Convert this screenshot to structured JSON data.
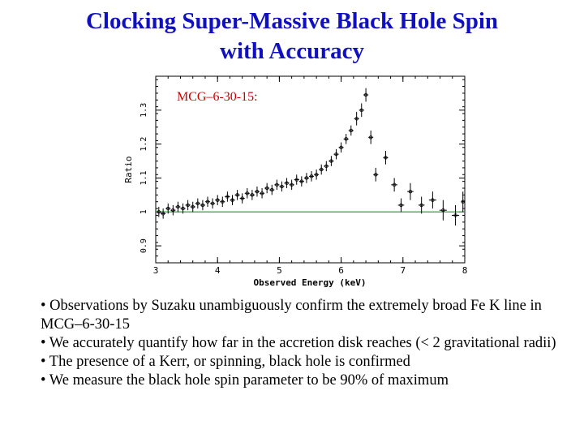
{
  "slide": {
    "title_line1": "Clocking Super-Massive Black Hole Spin",
    "title_line2": "with Accuracy",
    "bullets": [
      "• Observations by Suzaku unambiguously confirm the extremely broad Fe K line in MCG–6-30-15",
      "• We accurately quantify how far in the accretion disk reaches (< 2 gravitational radii)",
      "• The presence of a Kerr, or spinning, black hole is confirmed",
      "• We measure the black hole spin parameter to be 90% of maximum"
    ]
  },
  "colors": {
    "title": "#1010c0",
    "annotation": "#cc0000",
    "reference_line": "#22aa22",
    "data": "#000000"
  },
  "chart_data": {
    "type": "scatter",
    "annotation": "MCG–6-30-15:",
    "xlabel": "Observed Energy (keV)",
    "ylabel": "Ratio",
    "xlim": [
      3,
      8
    ],
    "ylim": [
      0.85,
      1.4
    ],
    "xticks": [
      3,
      4,
      5,
      6,
      7,
      8
    ],
    "xtick_labels": [
      "3",
      "4",
      "5",
      "6",
      "7",
      "8"
    ],
    "yticks": [
      0.9,
      1.0,
      1.1,
      1.2,
      1.3
    ],
    "ytick_labels": [
      "0.9",
      "1",
      "1.1",
      "1.2",
      "1.3"
    ],
    "reference_line": 1.0,
    "grid": false,
    "series": [
      {
        "points": [
          {
            "x": 3.05,
            "y": 1.0,
            "ex": 0.04,
            "ey": 0.015
          },
          {
            "x": 3.12,
            "y": 0.995,
            "ex": 0.04,
            "ey": 0.015
          },
          {
            "x": 3.2,
            "y": 1.01,
            "ex": 0.04,
            "ey": 0.015
          },
          {
            "x": 3.28,
            "y": 1.005,
            "ex": 0.04,
            "ey": 0.015
          },
          {
            "x": 3.36,
            "y": 1.015,
            "ex": 0.04,
            "ey": 0.015
          },
          {
            "x": 3.44,
            "y": 1.01,
            "ex": 0.04,
            "ey": 0.015
          },
          {
            "x": 3.52,
            "y": 1.02,
            "ex": 0.04,
            "ey": 0.015
          },
          {
            "x": 3.6,
            "y": 1.015,
            "ex": 0.04,
            "ey": 0.015
          },
          {
            "x": 3.68,
            "y": 1.025,
            "ex": 0.04,
            "ey": 0.015
          },
          {
            "x": 3.76,
            "y": 1.02,
            "ex": 0.04,
            "ey": 0.015
          },
          {
            "x": 3.84,
            "y": 1.03,
            "ex": 0.04,
            "ey": 0.015
          },
          {
            "x": 3.92,
            "y": 1.025,
            "ex": 0.04,
            "ey": 0.015
          },
          {
            "x": 4.0,
            "y": 1.035,
            "ex": 0.04,
            "ey": 0.015
          },
          {
            "x": 4.08,
            "y": 1.03,
            "ex": 0.04,
            "ey": 0.015
          },
          {
            "x": 4.16,
            "y": 1.045,
            "ex": 0.04,
            "ey": 0.015
          },
          {
            "x": 4.24,
            "y": 1.035,
            "ex": 0.04,
            "ey": 0.015
          },
          {
            "x": 4.32,
            "y": 1.05,
            "ex": 0.04,
            "ey": 0.015
          },
          {
            "x": 4.4,
            "y": 1.04,
            "ex": 0.04,
            "ey": 0.015
          },
          {
            "x": 4.48,
            "y": 1.055,
            "ex": 0.04,
            "ey": 0.015
          },
          {
            "x": 4.56,
            "y": 1.05,
            "ex": 0.04,
            "ey": 0.015
          },
          {
            "x": 4.64,
            "y": 1.06,
            "ex": 0.04,
            "ey": 0.015
          },
          {
            "x": 4.72,
            "y": 1.055,
            "ex": 0.04,
            "ey": 0.015
          },
          {
            "x": 4.8,
            "y": 1.07,
            "ex": 0.04,
            "ey": 0.015
          },
          {
            "x": 4.88,
            "y": 1.065,
            "ex": 0.04,
            "ey": 0.015
          },
          {
            "x": 4.96,
            "y": 1.08,
            "ex": 0.04,
            "ey": 0.015
          },
          {
            "x": 5.04,
            "y": 1.075,
            "ex": 0.04,
            "ey": 0.015
          },
          {
            "x": 5.12,
            "y": 1.085,
            "ex": 0.04,
            "ey": 0.015
          },
          {
            "x": 5.2,
            "y": 1.08,
            "ex": 0.04,
            "ey": 0.015
          },
          {
            "x": 5.28,
            "y": 1.095,
            "ex": 0.04,
            "ey": 0.015
          },
          {
            "x": 5.36,
            "y": 1.09,
            "ex": 0.04,
            "ey": 0.015
          },
          {
            "x": 5.44,
            "y": 1.1,
            "ex": 0.04,
            "ey": 0.015
          },
          {
            "x": 5.52,
            "y": 1.105,
            "ex": 0.04,
            "ey": 0.015
          },
          {
            "x": 5.6,
            "y": 1.11,
            "ex": 0.04,
            "ey": 0.015
          },
          {
            "x": 5.68,
            "y": 1.125,
            "ex": 0.04,
            "ey": 0.015
          },
          {
            "x": 5.76,
            "y": 1.135,
            "ex": 0.04,
            "ey": 0.015
          },
          {
            "x": 5.84,
            "y": 1.15,
            "ex": 0.04,
            "ey": 0.015
          },
          {
            "x": 5.92,
            "y": 1.17,
            "ex": 0.04,
            "ey": 0.015
          },
          {
            "x": 6.0,
            "y": 1.19,
            "ex": 0.04,
            "ey": 0.015
          },
          {
            "x": 6.08,
            "y": 1.215,
            "ex": 0.04,
            "ey": 0.015
          },
          {
            "x": 6.16,
            "y": 1.24,
            "ex": 0.04,
            "ey": 0.015
          },
          {
            "x": 6.25,
            "y": 1.275,
            "ex": 0.04,
            "ey": 0.02
          },
          {
            "x": 6.33,
            "y": 1.3,
            "ex": 0.04,
            "ey": 0.02
          },
          {
            "x": 6.4,
            "y": 1.345,
            "ex": 0.04,
            "ey": 0.02
          },
          {
            "x": 6.48,
            "y": 1.22,
            "ex": 0.04,
            "ey": 0.02
          },
          {
            "x": 6.56,
            "y": 1.11,
            "ex": 0.04,
            "ey": 0.02
          },
          {
            "x": 6.72,
            "y": 1.16,
            "ex": 0.04,
            "ey": 0.02
          },
          {
            "x": 6.86,
            "y": 1.08,
            "ex": 0.05,
            "ey": 0.02
          },
          {
            "x": 6.97,
            "y": 1.02,
            "ex": 0.05,
            "ey": 0.02
          },
          {
            "x": 7.12,
            "y": 1.06,
            "ex": 0.05,
            "ey": 0.025
          },
          {
            "x": 7.3,
            "y": 1.02,
            "ex": 0.05,
            "ey": 0.025
          },
          {
            "x": 7.48,
            "y": 1.035,
            "ex": 0.06,
            "ey": 0.025
          },
          {
            "x": 7.65,
            "y": 1.005,
            "ex": 0.06,
            "ey": 0.03
          },
          {
            "x": 7.85,
            "y": 0.99,
            "ex": 0.06,
            "ey": 0.03
          },
          {
            "x": 7.97,
            "y": 1.03,
            "ex": 0.03,
            "ey": 0.03
          }
        ]
      }
    ]
  }
}
